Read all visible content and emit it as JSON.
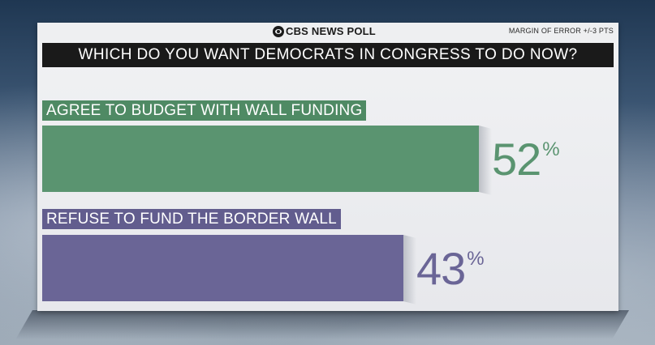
{
  "header": {
    "brand": "CBS NEWS POLL",
    "margin_of_error": "MARGIN OF ERROR +/-3 PTS",
    "question": "WHICH DO YOU WANT DEMOCRATS IN CONGRESS TO DO NOW?"
  },
  "colors": {
    "series_1": "#5a9470",
    "series_2": "#6a6596",
    "label_1": "#4f8a64",
    "label_2": "#625d8e"
  },
  "icons": {
    "brand": "cbs-eye-icon"
  },
  "chart_data": {
    "type": "bar",
    "orientation": "horizontal",
    "categories": [
      "AGREE TO BUDGET WITH WALL FUNDING",
      "REFUSE TO FUND THE BORDER WALL"
    ],
    "values": [
      52,
      43
    ],
    "value_labels": [
      "52",
      "43"
    ],
    "unit": "%",
    "xlim": [
      0,
      68
    ],
    "title": "WHICH DO YOU WANT DEMOCRATS IN CONGRESS TO DO NOW?",
    "grid": false,
    "legend": "none"
  }
}
